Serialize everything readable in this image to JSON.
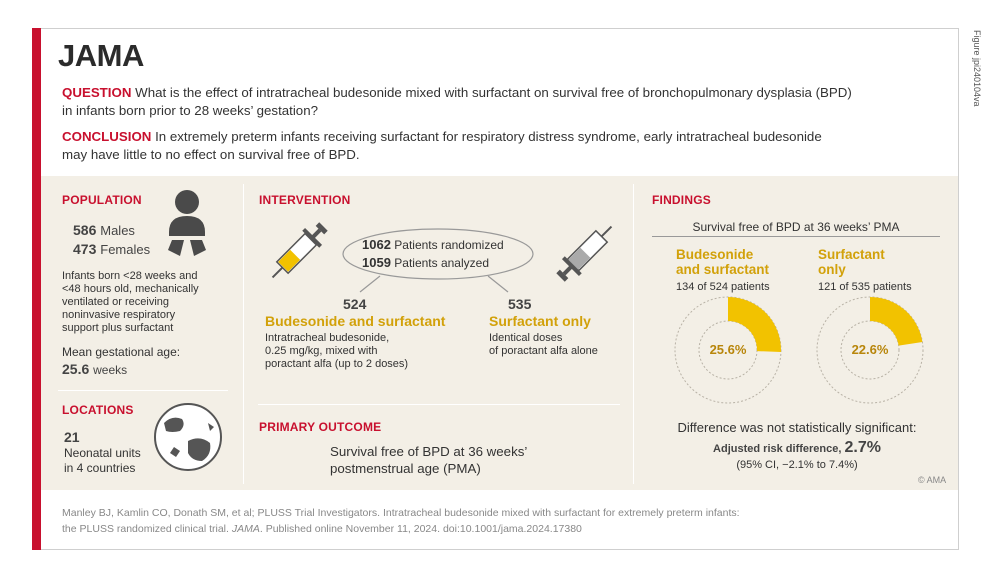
{
  "header": {
    "logo": "JAMA",
    "figure_id": "Figure jpi240104va"
  },
  "question": {
    "label": "QUESTION",
    "text": "What is the effect of intratracheal budesonide mixed with surfactant on survival free of bronchopulmonary dysplasia (BPD)",
    "text2": "in infants born prior to 28 weeks’ gestation?"
  },
  "conclusion": {
    "label": "CONCLUSION",
    "text": "In extremely preterm infants receiving surfactant for respiratory distress syndrome, early intratracheal budesonide",
    "text2": "may have little to no effect on survival free of BPD."
  },
  "population": {
    "title": "POPULATION",
    "males_n": "586",
    "males_label": "Males",
    "females_n": "473",
    "females_label": "Females",
    "desc": [
      "Infants born <28 weeks and",
      "<48 hours old, mechanically",
      "ventilated or receiving",
      "noninvasive respiratory",
      "support plus surfactant"
    ],
    "mean_label": "Mean gestational age:",
    "mean_value": "25.6",
    "mean_unit": "weeks"
  },
  "locations": {
    "title": "LOCATIONS",
    "count": "21",
    "line1": "Neonatal units",
    "line2": "in 4 countries"
  },
  "intervention": {
    "title": "INTERVENTION",
    "randomized_n": "1062",
    "randomized_label": "Patients randomized",
    "analyzed_n": "1059",
    "analyzed_label": "Patients analyzed",
    "arm1_n": "524",
    "arm1_title": "Budesonide and surfactant",
    "arm1_desc": [
      "Intratracheal budesonide,",
      "0.25 mg/kg, mixed with",
      "poractant alfa (up to 2 doses)"
    ],
    "arm2_n": "535",
    "arm2_title": "Surfactant only",
    "arm2_desc": [
      "Identical doses",
      "of poractant alfa alone"
    ]
  },
  "primary_outcome": {
    "title": "PRIMARY OUTCOME",
    "line1": "Survival free of BPD at 36 weeks’",
    "line2": "postmenstrual age (PMA)"
  },
  "findings": {
    "title": "FINDINGS",
    "subtitle": "Survival free of BPD at 36 weeks’ PMA",
    "arm1_line1": "Budesonide",
    "arm1_line2": "and surfactant",
    "arm1_count": "134 of 524 patients",
    "arm1_pct": "25.6%",
    "arm1_value": 25.6,
    "arm2_line1": "Surfactant",
    "arm2_line2": "only",
    "arm2_count": "121 of 535 patients",
    "arm2_pct": "22.6%",
    "arm2_value": 22.6,
    "result": "Difference was not statistically significant:",
    "ard_label": "Adjusted risk difference,",
    "ard_value": "2.7%",
    "ci": "(95% CI, −2.1% to 7.4%)",
    "copyright": "© AMA"
  },
  "footer": {
    "line1": "Manley BJ, Kamlin CO, Donath SM, et al; PLUSS Trial Investigators. Intratracheal budesonide mixed with surfactant for extremely preterm infants:",
    "line2_pre": "the PLUSS randomized clinical trial.",
    "line2_journal": "JAMA",
    "line2_post": ". Published online November 11, 2024. doi:10.1001/jama.2024.17380"
  },
  "colors": {
    "accent_red": "#c8102e",
    "gold": "#f2c200",
    "gold_text": "#d2a10a",
    "panel": "#f3efe6"
  }
}
